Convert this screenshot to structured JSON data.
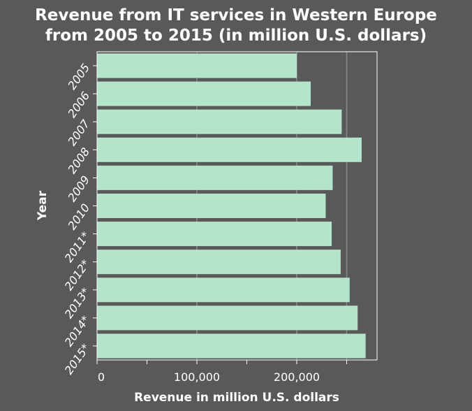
{
  "chart_data": {
    "type": "bar",
    "orientation": "horizontal",
    "title_line1": "Revenue from IT services in Western Europe",
    "title_line2": "from 2005 to 2015 (in million U.S. dollars)",
    "xlabel": "Revenue in million U.S. dollars",
    "ylabel": "Year",
    "categories": [
      "2005",
      "2006",
      "2007",
      "2008",
      "2009",
      "2010",
      "2011*",
      "2012*",
      "2013*",
      "2014*",
      "2015*"
    ],
    "values": [
      200000,
      214000,
      245000,
      265000,
      236000,
      229000,
      235000,
      244000,
      253000,
      261000,
      269000
    ],
    "xlim": [
      0,
      280000
    ],
    "xticks": [
      0,
      50000,
      100000,
      150000,
      200000,
      250000
    ],
    "xtick_labels": [
      "0",
      "",
      "100,000",
      "",
      "200,000",
      ""
    ],
    "grid": "vertical",
    "legend": "none",
    "colors": {
      "background": "#595959",
      "bar": "#b2e5cc",
      "axis": "#ffffff",
      "grid": "#8a8a8a",
      "text": "#ffffff"
    }
  }
}
